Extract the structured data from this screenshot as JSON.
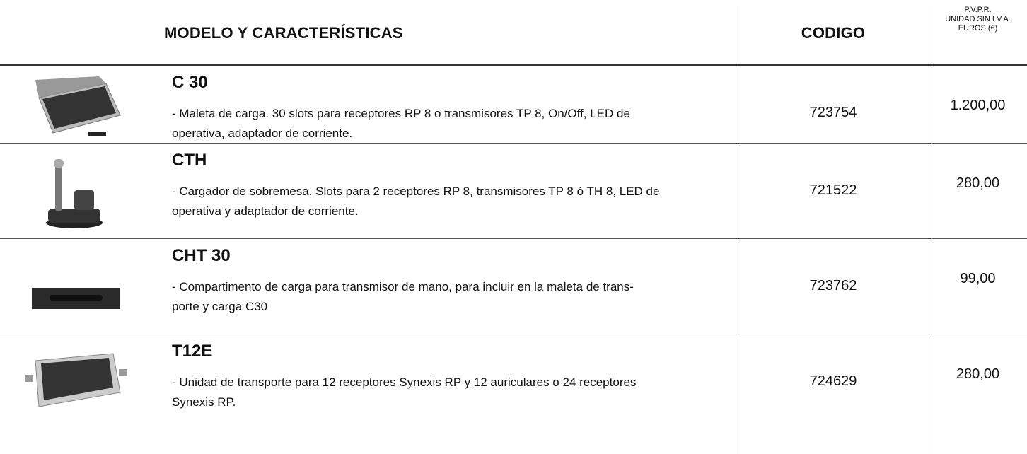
{
  "header": {
    "model": "MODELO Y CARACTERÍSTICAS",
    "code": "CODIGO",
    "price": [
      "P.V.P.R.",
      "UNIDAD SIN I.V.A.",
      "EUROS (€)"
    ]
  },
  "rows": [
    {
      "model": "C 30",
      "description": [
        "- Maleta de carga. 30 slots para receptores RP 8 o transmisores TP 8, On/Off, LED de",
        "operativa, adaptador de corriente."
      ],
      "code": "723754",
      "price": "1.200,00"
    },
    {
      "model": "CTH",
      "description": [
        "- Cargador de sobremesa. Slots para 2 receptores RP 8, transmisores TP 8 ó TH 8, LED de",
        "operativa y adaptador de corriente."
      ],
      "code": "721522",
      "price": "280,00"
    },
    {
      "model": "CHT 30",
      "description": [
        "- Compartimento de carga para transmisor de mano, para incluir en la maleta de trans-",
        "porte y carga C30"
      ],
      "code": "723762",
      "price": "99,00"
    },
    {
      "model": "T12E",
      "description": [
        "- Unidad de transporte para 12 receptores Synexis RP y 12 auriculares o 24 receptores",
        "Synexis RP."
      ],
      "code": "724629",
      "price": "280,00"
    }
  ]
}
